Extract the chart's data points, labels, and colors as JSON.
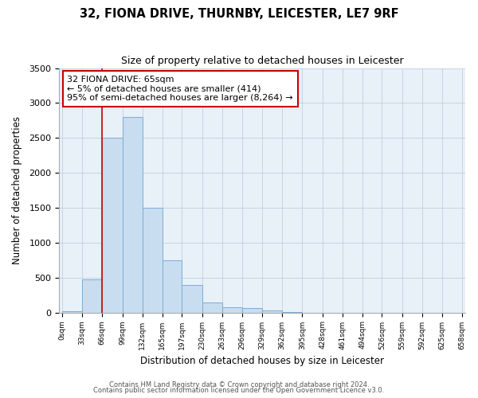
{
  "title": "32, FIONA DRIVE, THURNBY, LEICESTER, LE7 9RF",
  "subtitle": "Size of property relative to detached houses in Leicester",
  "xlabel": "Distribution of detached houses by size in Leicester",
  "ylabel": "Number of detached properties",
  "bar_color": "#c8ddf0",
  "bar_edge_color": "#7badd4",
  "annotation_box_color": "#ffffff",
  "annotation_border_color": "#cc0000",
  "vline_color": "#cc0000",
  "vline_x": 66,
  "annotation_line1": "32 FIONA DRIVE: 65sqm",
  "annotation_line2": "← 5% of detached houses are smaller (414)",
  "annotation_line3": "95% of semi-detached houses are larger (8,264) →",
  "footer_line1": "Contains HM Land Registry data © Crown copyright and database right 2024.",
  "footer_line2": "Contains public sector information licensed under the Open Government Licence v3.0.",
  "bin_edges": [
    0,
    33,
    66,
    99,
    132,
    165,
    197,
    230,
    263,
    296,
    329,
    362,
    395,
    428,
    461,
    494,
    526,
    559,
    592,
    625,
    658
  ],
  "bin_heights": [
    20,
    470,
    2500,
    2800,
    1500,
    750,
    390,
    145,
    75,
    60,
    25,
    5,
    0,
    0,
    0,
    0,
    0,
    0,
    0,
    0
  ],
  "ylim": [
    0,
    3500
  ],
  "xlim_min": -5,
  "xlim_max": 663,
  "yticks": [
    0,
    500,
    1000,
    1500,
    2000,
    2500,
    3000,
    3500
  ],
  "tick_labels": [
    "0sqm",
    "33sqm",
    "66sqm",
    "99sqm",
    "132sqm",
    "165sqm",
    "197sqm",
    "230sqm",
    "263sqm",
    "296sqm",
    "329sqm",
    "362sqm",
    "395sqm",
    "428sqm",
    "461sqm",
    "494sqm",
    "526sqm",
    "559sqm",
    "592sqm",
    "625sqm",
    "658sqm"
  ],
  "tick_positions": [
    0,
    33,
    66,
    99,
    132,
    165,
    197,
    230,
    263,
    296,
    329,
    362,
    395,
    428,
    461,
    494,
    526,
    559,
    592,
    625,
    658
  ],
  "bg_color": "#e8f0f8",
  "grid_color": "#c0cfe0"
}
